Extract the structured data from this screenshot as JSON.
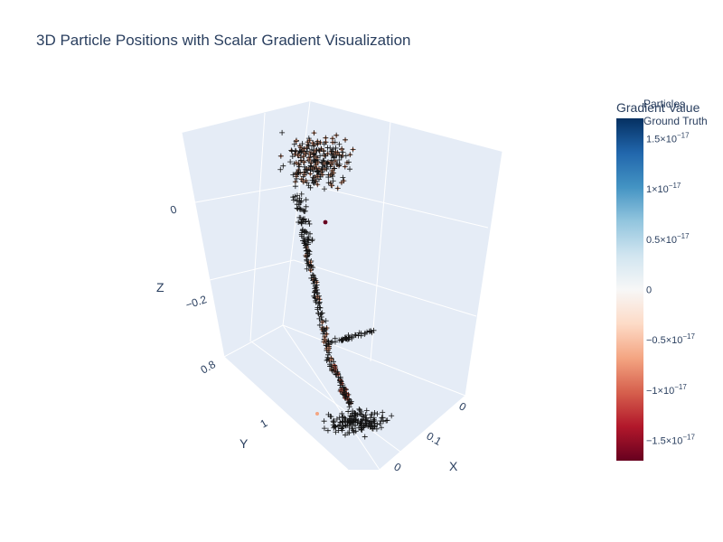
{
  "chart_data": {
    "type": "scatter",
    "title": "3D Particle Positions with Scalar Gradient Visualization",
    "axes": {
      "x": {
        "label": "X",
        "ticks": [
          "0",
          "0.1",
          "0"
        ]
      },
      "y": {
        "label": "Y",
        "ticks": [
          "0.8",
          "1"
        ]
      },
      "z": {
        "label": "Z",
        "ticks": [
          "0",
          "−0.2"
        ]
      }
    },
    "legend": {
      "placement": "top-right",
      "entries": [
        "Particles",
        "Ground Truth"
      ]
    },
    "colorbar": {
      "title": "Gradient Value",
      "colorscale": [
        "#67001f",
        "#b2182b",
        "#d6604d",
        "#f4a582",
        "#fddbc7",
        "#f7f7f7",
        "#d1e5f0",
        "#92c5de",
        "#4393c3",
        "#2166ac",
        "#053061"
      ],
      "range": [
        -1.7e-17,
        1.7e-17
      ],
      "ticks": [
        {
          "value": 1.5e-17,
          "mantissa": "1.5",
          "exponent": "−17"
        },
        {
          "value": 1e-17,
          "mantissa": "1",
          "exponent": "−17"
        },
        {
          "value": 5e-18,
          "mantissa": "0.5",
          "exponent": "−17"
        },
        {
          "value": 0,
          "mantissa": "0",
          "exponent": ""
        },
        {
          "value": -5e-18,
          "mantissa": "−0.5",
          "exponent": "−17"
        },
        {
          "value": -1e-17,
          "mantissa": "−1",
          "exponent": "−17"
        },
        {
          "value": -1.5e-17,
          "mantissa": "−1.5",
          "exponent": "−17"
        }
      ]
    },
    "ground_truth_marker": "+",
    "particle_marker": "circle",
    "scene_background": "#e5ecf6",
    "grid": true
  }
}
